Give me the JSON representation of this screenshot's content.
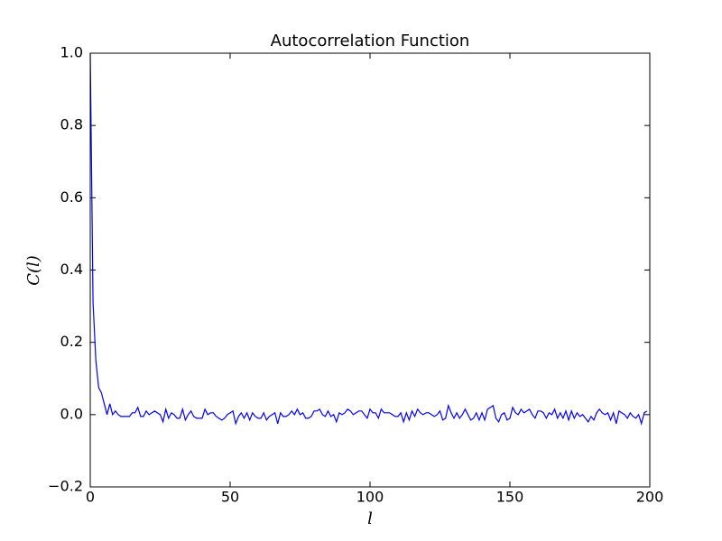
{
  "chart_data": {
    "type": "line",
    "title": "Autocorrelation Function",
    "xlabel": "l",
    "ylabel": "C(l)",
    "x": [
      0,
      1,
      2,
      3,
      4,
      5,
      6,
      7,
      8,
      9,
      10,
      11,
      12,
      13,
      14,
      15,
      16,
      17,
      18,
      19,
      20,
      21,
      22,
      23,
      24,
      25,
      26,
      27,
      28,
      29,
      30,
      31,
      32,
      33,
      34,
      35,
      36,
      37,
      38,
      39,
      40,
      41,
      42,
      43,
      44,
      45,
      46,
      47,
      48,
      49,
      50,
      51,
      52,
      53,
      54,
      55,
      56,
      57,
      58,
      59,
      60,
      61,
      62,
      63,
      64,
      65,
      66,
      67,
      68,
      69,
      70,
      71,
      72,
      73,
      74,
      75,
      76,
      77,
      78,
      79,
      80,
      81,
      82,
      83,
      84,
      85,
      86,
      87,
      88,
      89,
      90,
      91,
      92,
      93,
      94,
      95,
      96,
      97,
      98,
      99,
      100,
      101,
      102,
      103,
      104,
      105,
      106,
      107,
      108,
      109,
      110,
      111,
      112,
      113,
      114,
      115,
      116,
      117,
      118,
      119,
      120,
      121,
      122,
      123,
      124,
      125,
      126,
      127,
      128,
      129,
      130,
      131,
      132,
      133,
      134,
      135,
      136,
      137,
      138,
      139,
      140,
      141,
      142,
      143,
      144,
      145,
      146,
      147,
      148,
      149,
      150,
      151,
      152,
      153,
      154,
      155,
      156,
      157,
      158,
      159,
      160,
      161,
      162,
      163,
      164,
      165,
      166,
      167,
      168,
      169,
      170,
      171,
      172,
      173,
      174,
      175,
      176,
      177,
      178,
      179,
      180,
      181,
      182,
      183,
      184,
      185,
      186,
      187,
      188,
      189,
      190,
      191,
      192,
      193,
      194,
      195,
      196,
      197,
      198,
      199
    ],
    "series": [
      {
        "color": "#0000ff",
        "values": [
          1.0,
          0.31,
          0.15,
          0.075,
          0.06,
          0.03,
          0.0,
          0.03,
          0.0,
          0.01,
          0.0,
          -0.005,
          -0.005,
          -0.005,
          -0.005,
          0.005,
          0.005,
          0.02,
          -0.005,
          -0.005,
          0.01,
          0.0,
          0.005,
          0.01,
          0.005,
          0.0,
          -0.02,
          0.015,
          -0.01,
          0.005,
          0.0,
          -0.01,
          -0.01,
          0.015,
          -0.015,
          0.0,
          0.01,
          -0.005,
          -0.01,
          -0.01,
          -0.01,
          0.015,
          0.0,
          0.005,
          0.005,
          -0.005,
          -0.01,
          -0.015,
          -0.01,
          0.0,
          0.005,
          0.01,
          -0.025,
          -0.005,
          0.005,
          -0.01,
          0.005,
          -0.015,
          0.005,
          -0.005,
          -0.01,
          -0.01,
          0.005,
          -0.015,
          -0.005,
          0.0,
          0.005,
          -0.025,
          0.005,
          -0.005,
          -0.005,
          0.0,
          0.01,
          0.0,
          0.015,
          0.0,
          0.005,
          -0.01,
          -0.01,
          -0.005,
          0.01,
          0.01,
          0.015,
          0.0,
          -0.005,
          0.01,
          -0.005,
          0.0,
          -0.02,
          0.005,
          0.0,
          0.005,
          0.015,
          0.01,
          0.0,
          0.005,
          0.01,
          0.01,
          0.0,
          -0.01,
          0.015,
          0.005,
          0.005,
          -0.01,
          0.015,
          0.005,
          0.005,
          0.005,
          0.0,
          -0.005,
          -0.005,
          0.005,
          -0.02,
          0.005,
          -0.015,
          0.01,
          -0.005,
          0.015,
          0.005,
          0.0,
          0.005,
          0.005,
          0.0,
          -0.005,
          0.0,
          0.01,
          -0.015,
          -0.01,
          0.025,
          0.005,
          -0.01,
          0.005,
          -0.01,
          0.0,
          0.015,
          0.0,
          -0.015,
          -0.01,
          0.005,
          -0.015,
          0.005,
          -0.015,
          0.015,
          0.02,
          0.025,
          -0.01,
          -0.02,
          0.0,
          0.005,
          -0.015,
          -0.01,
          0.02,
          0.005,
          0.0,
          0.015,
          0.005,
          0.01,
          0.015,
          0.0,
          -0.01,
          0.01,
          0.01,
          0.005,
          -0.01,
          0.005,
          0.0,
          0.015,
          -0.01,
          0.005,
          -0.01,
          0.01,
          -0.015,
          0.01,
          -0.01,
          0.005,
          -0.005,
          0.0,
          -0.01,
          -0.02,
          -0.005,
          -0.015,
          0.005,
          0.015,
          0.005,
          0.0,
          0.005,
          -0.015,
          0.005,
          -0.025,
          0.01,
          0.005,
          0.0,
          -0.01,
          0.005,
          -0.005,
          -0.01,
          0.0,
          -0.025,
          0.005,
          0.01
        ]
      }
    ],
    "xlim": [
      0,
      200
    ],
    "xticks": [
      0,
      50,
      100,
      150,
      200
    ],
    "ylim": [
      -0.2,
      1.0
    ],
    "yticks": [
      {
        "value": -0.2,
        "label": "−0.2"
      },
      {
        "value": 0.0,
        "label": "0.0"
      },
      0.2,
      0.4,
      0.6,
      0.8,
      {
        "value": 1.0,
        "label": "1.0"
      }
    ],
    "grid": false
  }
}
